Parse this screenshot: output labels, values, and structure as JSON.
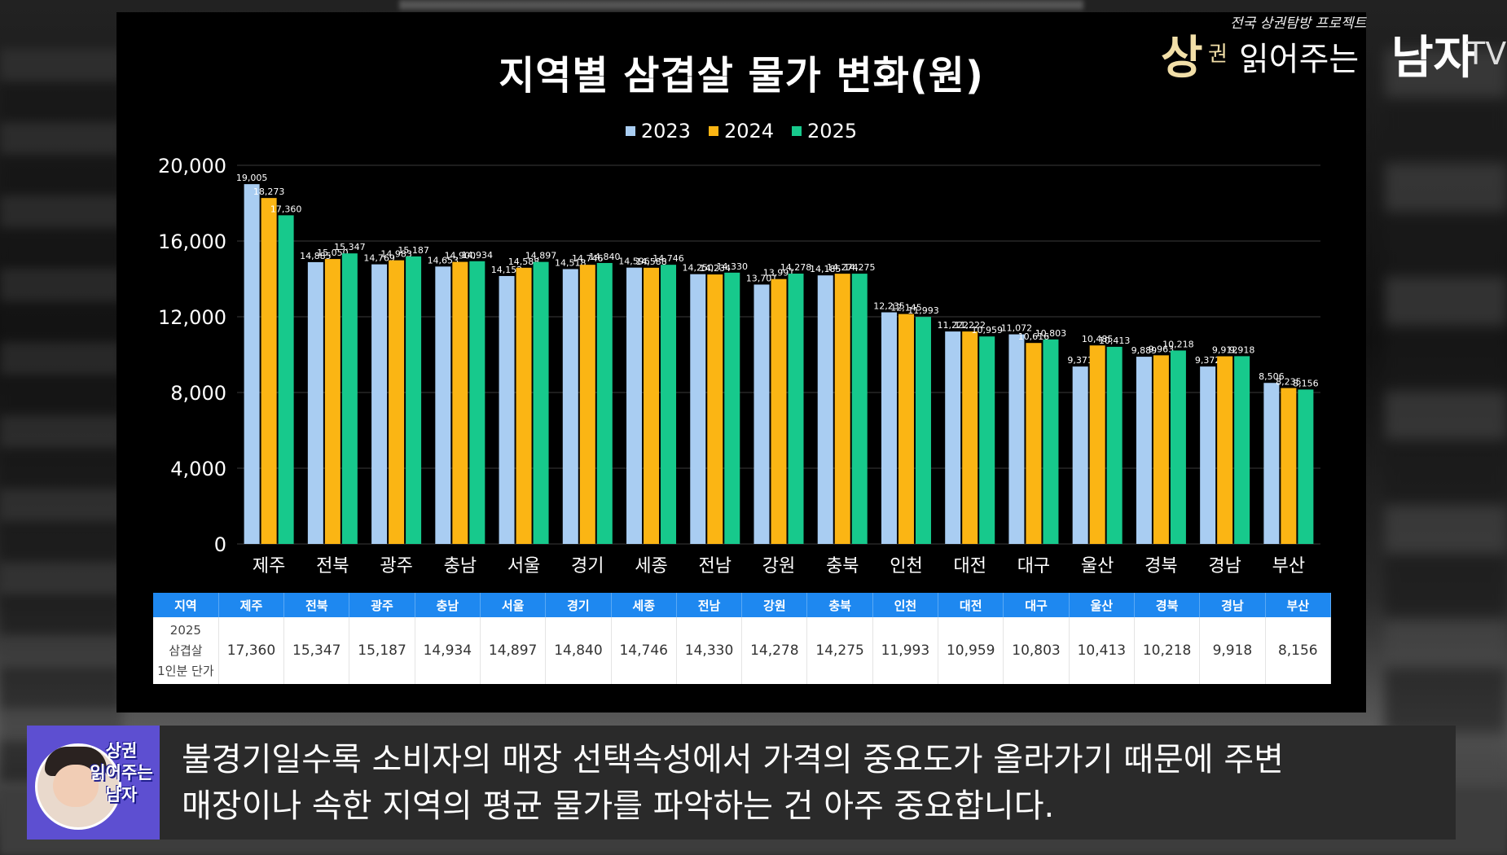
{
  "watermark": {
    "sub": "전국 상권탐방 프로젝트",
    "big1": "상",
    "small": "권",
    "mid": "읽어주는",
    "big2": "남자",
    "tv": "TV"
  },
  "caption": {
    "avatar_badge_line1": "상권",
    "avatar_badge_line2": "읽어주는",
    "avatar_badge_line3": "남자",
    "line1": "불경기일수록 소비자의 매장 선택속성에서 가격의 중요도가 올라가기 때문에 주변",
    "line2": "매장이나 속한 지역의 평균 물가를 파악하는 건 아주 중요합니다."
  },
  "table": {
    "header_label": "지역",
    "row_label_1": "2025",
    "row_label_2": "삼겹살",
    "row_label_3": "1인분 단가",
    "values": [
      "17,360",
      "15,347",
      "15,187",
      "14,934",
      "14,897",
      "14,840",
      "14,746",
      "14,330",
      "14,278",
      "14,275",
      "11,993",
      "10,959",
      "10,803",
      "10,413",
      "10,218",
      "9,918",
      "8,156"
    ]
  },
  "colors": {
    "2023": "#a9cdf2",
    "2024": "#fbb514",
    "2025": "#17c98c"
  },
  "chart_data": {
    "type": "bar",
    "title": "지역별 삼겹살 물가 변화(원)",
    "xlabel": "",
    "ylabel": "",
    "ylim": [
      0,
      20000
    ],
    "yticks": [
      "0",
      "4,000",
      "8,000",
      "12,000",
      "16,000",
      "20,000"
    ],
    "ytick_values": [
      0,
      4000,
      8000,
      12000,
      16000,
      20000
    ],
    "grid": true,
    "legend": "top-center",
    "categories": [
      "제주",
      "전북",
      "광주",
      "충남",
      "서울",
      "경기",
      "세종",
      "전남",
      "강원",
      "충북",
      "인천",
      "대전",
      "대구",
      "울산",
      "경북",
      "경남",
      "부산"
    ],
    "series": [
      {
        "name": "2023",
        "values": [
          19005,
          14885,
          14769,
          14653,
          14152,
          14518,
          14596,
          14250,
          13701,
          14185,
          12235,
          11222,
          11072,
          9371,
          9889,
          9372,
          8506
        ],
        "labels": [
          "19,005",
          "14,885",
          "14,769",
          "14,653",
          "14,152",
          "14,518",
          "14,596",
          "14,250",
          "13,701",
          "14,185",
          "12,235",
          "11,222",
          "11,072",
          "9,371",
          "9,889",
          "9,372",
          "8,506"
        ]
      },
      {
        "name": "2024",
        "values": [
          18273,
          15050,
          14983,
          14900,
          14588,
          14746,
          14588,
          14234,
          13991,
          14274,
          12145,
          11222,
          10616,
          10485,
          9963,
          9912,
          8235
        ],
        "labels": [
          "18,273",
          "15,050",
          "14,983",
          "14,900",
          "14,588",
          "14,746",
          "14,588",
          "14,234",
          "13,991",
          "14,274",
          "12,145",
          "11,222",
          "10,616",
          "10,485",
          "9,963",
          "9,912",
          "8,235"
        ]
      },
      {
        "name": "2025",
        "values": [
          17360,
          15347,
          15187,
          14934,
          14897,
          14840,
          14746,
          14330,
          14278,
          14275,
          11993,
          10959,
          10803,
          10413,
          10218,
          9918,
          8156
        ],
        "labels": [
          "17,360",
          "15,347",
          "15,187",
          "14,934",
          "14,897",
          "14,840",
          "14,746",
          "14,330",
          "14,278",
          "14,275",
          "11,993",
          "10,959",
          "10,803",
          "10,413",
          "10,218",
          "9,918",
          "8,156"
        ]
      }
    ]
  }
}
